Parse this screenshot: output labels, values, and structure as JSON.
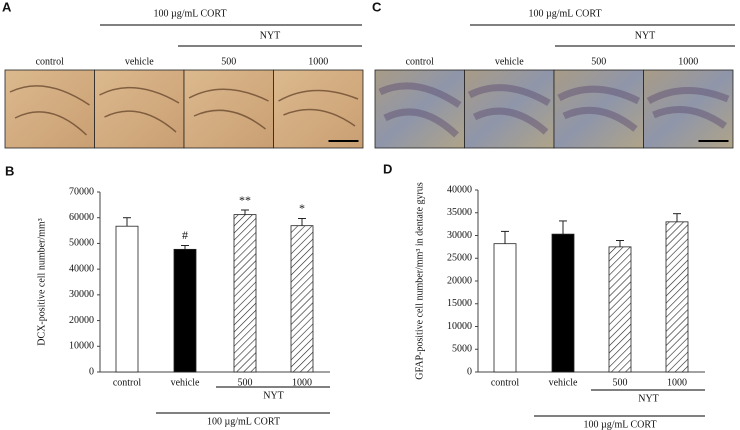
{
  "panels": [
    {
      "label": "A",
      "header": "100 µg/mL CORT",
      "subheader": "NYT",
      "images": [
        "control",
        "vehicle",
        "500",
        "1000"
      ]
    },
    {
      "label": "C",
      "header": "100 µg/mL CORT",
      "subheader": "NYT",
      "images": [
        "control",
        "vehicle",
        "500",
        "1000"
      ]
    }
  ],
  "chart_data": [
    {
      "type": "bar",
      "panel_label": "B",
      "ylabel": "DCX-positive cell number/mm³",
      "categories": [
        "control",
        "vehicle",
        "500",
        "1000"
      ],
      "values": [
        56700,
        47700,
        61200,
        56900
      ],
      "errors": [
        3300,
        1500,
        1800,
        2800
      ],
      "colors": [
        "#ffffff",
        "#000000",
        "#ffffff",
        "#ffffff"
      ],
      "hatched": [
        false,
        false,
        true,
        true
      ],
      "annotations": [
        {
          "index": 1,
          "text": "#"
        },
        {
          "index": 2,
          "text": "**"
        },
        {
          "index": 3,
          "text": "*"
        }
      ],
      "group_labels": {
        "inner": "NYT",
        "outer": "100 µg/mL CORT"
      },
      "ylim": [
        0,
        70000
      ],
      "yticks": [
        0,
        10000,
        20000,
        30000,
        40000,
        50000,
        60000,
        70000
      ]
    },
    {
      "type": "bar",
      "panel_label": "D",
      "ylabel": "GFAP-positive cell number/mm³ in dentate gyrus",
      "categories": [
        "control",
        "vehicle",
        "500",
        "1000"
      ],
      "values": [
        28200,
        30300,
        27500,
        33000
      ],
      "errors": [
        2700,
        2900,
        1400,
        1800
      ],
      "colors": [
        "#ffffff",
        "#000000",
        "#ffffff",
        "#ffffff"
      ],
      "hatched": [
        false,
        false,
        true,
        true
      ],
      "group_labels": {
        "inner": "NYT",
        "outer": "100 µg/mL CORT"
      },
      "ylim": [
        0,
        40000
      ],
      "yticks": [
        0,
        5000,
        10000,
        15000,
        20000,
        25000,
        30000,
        35000,
        40000
      ]
    }
  ]
}
